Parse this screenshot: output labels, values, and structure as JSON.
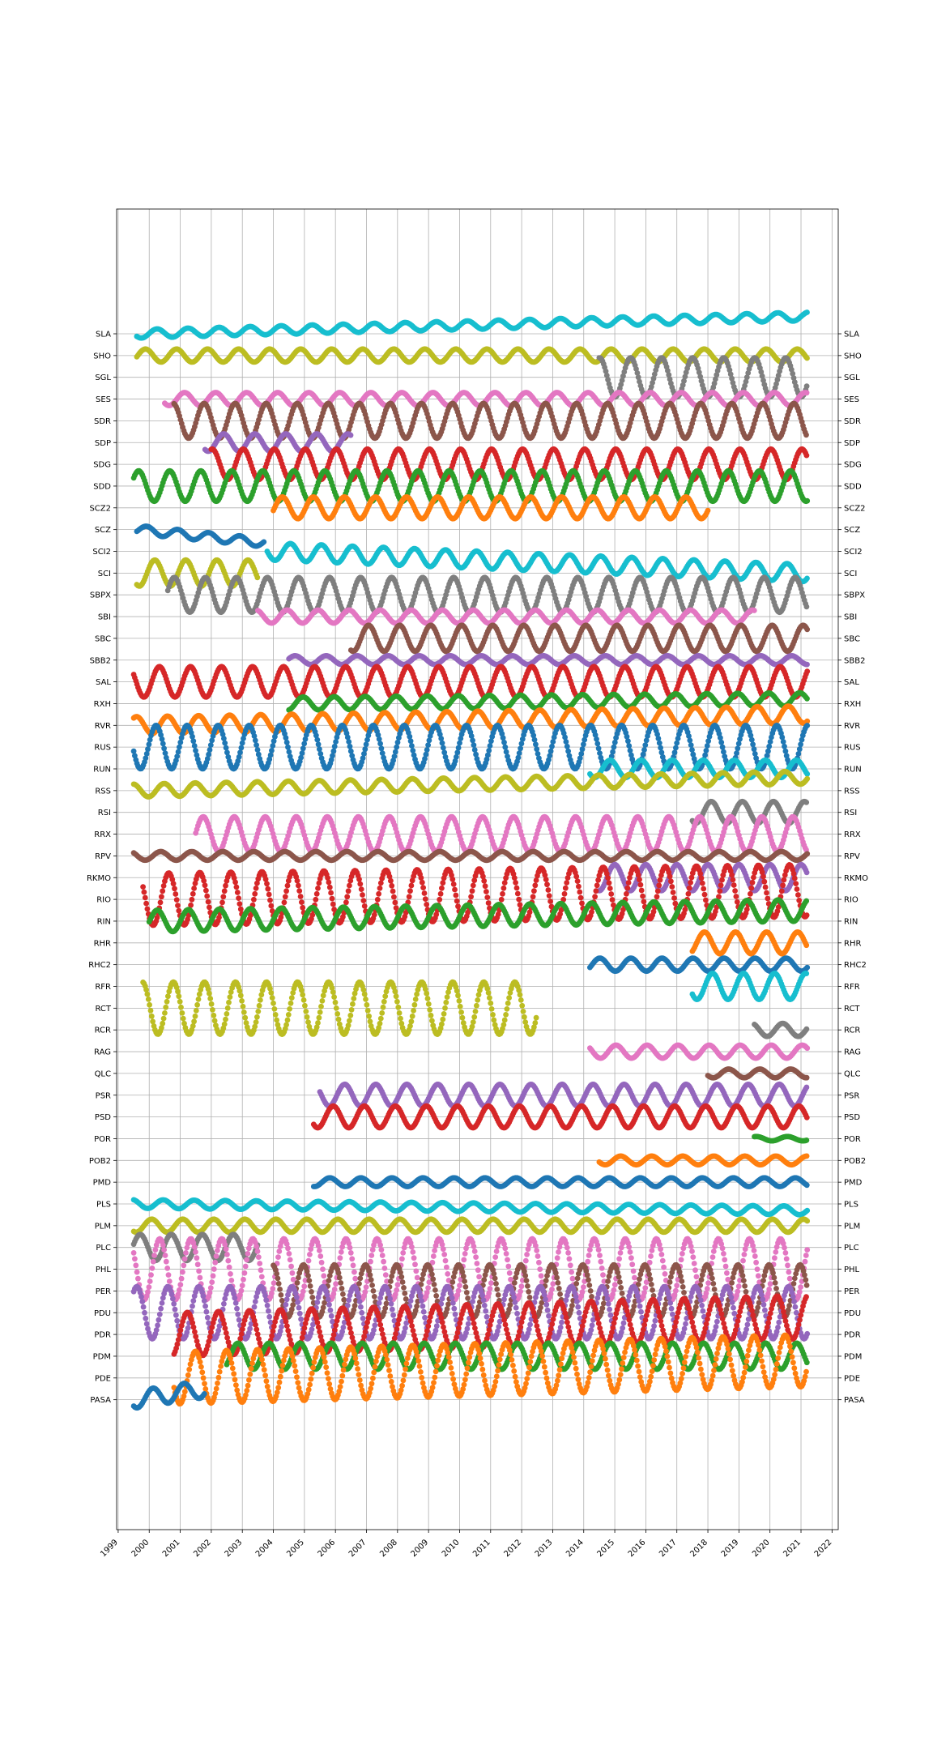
{
  "chart_data": {
    "type": "scatter",
    "title": "",
    "xlabel": "",
    "ylabel": "",
    "x_ticks": [
      "1999",
      "2000",
      "2001",
      "2002",
      "2003",
      "2004",
      "2005",
      "2006",
      "2007",
      "2008",
      "2009",
      "2010",
      "2011",
      "2012",
      "2013",
      "2014",
      "2015",
      "2016",
      "2017",
      "2018",
      "2019",
      "2020",
      "2021",
      "2022"
    ],
    "xlim": [
      1998.95,
      2022.2
    ],
    "grid": true,
    "y_labels_both_sides": true,
    "stations": [
      "SLA",
      "SHO",
      "SGL",
      "SES",
      "SDR",
      "SDP",
      "SDG",
      "SDD",
      "SCZ2",
      "SCZ",
      "SCI2",
      "SCI",
      "SBPX",
      "SBI",
      "SBC",
      "SBB2",
      "SAL",
      "RXH",
      "RVR",
      "RUS",
      "RUN",
      "RSS",
      "RSI",
      "RRX",
      "RPV",
      "RKMO",
      "RIO",
      "RIN",
      "RHR",
      "RHC2",
      "RFR",
      "RCT",
      "RCR",
      "RAG",
      "QLC",
      "PSR",
      "PSD",
      "POR",
      "POB2",
      "PMD",
      "PLS",
      "PLM",
      "PLC",
      "PHL",
      "PER",
      "PDU",
      "PDR",
      "PDM",
      "PDE",
      "PASA"
    ],
    "palette": [
      "#1f77b4",
      "#ff7f0e",
      "#2ca02c",
      "#d62728",
      "#9467bd",
      "#8c564b",
      "#e377c2",
      "#7f7f7f",
      "#bcbd22",
      "#17becf"
    ],
    "series": [
      {
        "name": "SLA",
        "color": "#17becf",
        "start": 1999.6,
        "end": 2021.2,
        "offset": 0,
        "trend": 0.8,
        "amp": 0.2,
        "period": 1
      },
      {
        "name": "SHO",
        "color": "#bcbd22",
        "start": 1999.6,
        "end": 2021.2,
        "offset": 0,
        "trend": 0,
        "amp": 0.3,
        "period": 1
      },
      {
        "name": "SGL",
        "color": "#7f7f7f",
        "start": 2014.5,
        "end": 2021.2,
        "offset": 0,
        "trend": 0,
        "amp": 0.9,
        "period": 1
      },
      {
        "name": "SES",
        "color": "#e377c2",
        "start": 2000.5,
        "end": 2021.2,
        "offset": 0,
        "trend": 0,
        "amp": 0.3,
        "period": 1
      },
      {
        "name": "SDR",
        "color": "#8c564b",
        "start": 2000.8,
        "end": 2021.2,
        "offset": 0,
        "trend": 0,
        "amp": 0.8,
        "period": 1
      },
      {
        "name": "SDP",
        "color": "#9467bd",
        "start": 2001.8,
        "end": 2006.5,
        "offset": 0,
        "trend": 0,
        "amp": 0.4,
        "period": 1
      },
      {
        "name": "SDG",
        "color": "#d62728",
        "start": 2002,
        "end": 2021.2,
        "offset": 0,
        "trend": 0,
        "amp": 0.7,
        "period": 1
      },
      {
        "name": "SDD",
        "color": "#2ca02c",
        "start": 1999.5,
        "end": 2021.2,
        "offset": 0,
        "trend": 0,
        "amp": 0.7,
        "period": 1
      },
      {
        "name": "SCZ2",
        "color": "#ff7f0e",
        "start": 2004,
        "end": 2018,
        "offset": 0,
        "trend": 0,
        "amp": 0.5,
        "period": 1
      },
      {
        "name": "SCZ",
        "color": "#1f77b4",
        "start": 1999.6,
        "end": 2003.7,
        "offset": 0,
        "trend": -0.6,
        "amp": 0.2,
        "period": 1
      },
      {
        "name": "SCI2",
        "color": "#17becf",
        "start": 2003.8,
        "end": 2021.2,
        "offset": 0,
        "trend": -1,
        "amp": 0.4,
        "period": 1
      },
      {
        "name": "SCI",
        "color": "#bcbd22",
        "start": 1999.6,
        "end": 2003.5,
        "offset": 0,
        "trend": 0,
        "amp": 0.6,
        "period": 1
      },
      {
        "name": "SBPX",
        "color": "#7f7f7f",
        "start": 2000.6,
        "end": 2021.2,
        "offset": 0,
        "trend": 0,
        "amp": 0.8,
        "period": 1
      },
      {
        "name": "SBI",
        "color": "#e377c2",
        "start": 2003.5,
        "end": 2019.5,
        "offset": 0,
        "trend": 0,
        "amp": 0.3,
        "period": 1
      },
      {
        "name": "SBC",
        "color": "#8c564b",
        "start": 2006.5,
        "end": 2021.2,
        "offset": 0,
        "trend": 0,
        "amp": 0.6,
        "period": 1
      },
      {
        "name": "SBB2",
        "color": "#9467bd",
        "start": 2004.5,
        "end": 2021.2,
        "offset": 0,
        "trend": 0,
        "amp": 0.2,
        "period": 1
      },
      {
        "name": "SAL",
        "color": "#d62728",
        "start": 1999.5,
        "end": 2021.2,
        "offset": 0,
        "trend": 0,
        "amp": 0.7,
        "period": 1
      },
      {
        "name": "RXH",
        "color": "#2ca02c",
        "start": 2004.5,
        "end": 2021.2,
        "offset": 0,
        "trend": 0.2,
        "amp": 0.3,
        "period": 1
      },
      {
        "name": "RVR",
        "color": "#ff7f0e",
        "start": 1999.5,
        "end": 2021.2,
        "offset": 0,
        "trend": 0.5,
        "amp": 0.4,
        "period": 1
      },
      {
        "name": "RUS",
        "color": "#1f77b4",
        "start": 1999.5,
        "end": 2021.2,
        "offset": 0,
        "trend": 0,
        "amp": 1.0,
        "period": 1
      },
      {
        "name": "RUN",
        "color": "#17becf",
        "start": 2014.2,
        "end": 2021.2,
        "offset": 0,
        "trend": 0,
        "amp": 0.4,
        "period": 1
      },
      {
        "name": "RSS",
        "color": "#bcbd22",
        "start": 1999.5,
        "end": 2021.2,
        "offset": 0,
        "trend": 0.6,
        "amp": 0.3,
        "period": 1
      },
      {
        "name": "RSI",
        "color": "#7f7f7f",
        "start": 2017.5,
        "end": 2021.2,
        "offset": 0,
        "trend": 0,
        "amp": 0.5,
        "period": 1
      },
      {
        "name": "RRX",
        "color": "#e377c2",
        "start": 2001.5,
        "end": 2021.2,
        "offset": 0,
        "trend": 0,
        "amp": 0.8,
        "period": 1
      },
      {
        "name": "RPV",
        "color": "#8c564b",
        "start": 1999.5,
        "end": 2021.2,
        "offset": 0,
        "trend": 0,
        "amp": 0.2,
        "period": 1
      },
      {
        "name": "RKMO",
        "color": "#9467bd",
        "start": 2014.5,
        "end": 2021.2,
        "offset": 0,
        "trend": 0,
        "amp": 0.6,
        "period": 1
      },
      {
        "name": "RIO",
        "color": "#d62728",
        "start": 1999.8,
        "end": 2021.2,
        "offset": 0,
        "trend": 0.4,
        "amp": 1.2,
        "period": 1
      },
      {
        "name": "RIN",
        "color": "#2ca02c",
        "start": 2000,
        "end": 2021.2,
        "offset": 0,
        "trend": 0.5,
        "amp": 0.5,
        "period": 1
      },
      {
        "name": "RHR",
        "color": "#ff7f0e",
        "start": 2017.5,
        "end": 2021.2,
        "offset": 0,
        "trend": 0,
        "amp": 0.5,
        "period": 1
      },
      {
        "name": "RHC2",
        "color": "#1f77b4",
        "start": 2014.2,
        "end": 2021.2,
        "offset": 0,
        "trend": 0,
        "amp": 0.3,
        "period": 1
      },
      {
        "name": "RFR",
        "color": "#17becf",
        "start": 2017.5,
        "end": 2021.2,
        "offset": 0,
        "trend": 0,
        "amp": 0.6,
        "period": 1
      },
      {
        "name": "RCT",
        "color": "#bcbd22",
        "start": 1999.8,
        "end": 2012.5,
        "offset": 0,
        "trend": 0,
        "amp": 1.2,
        "period": 1
      },
      {
        "name": "RCR",
        "color": "#7f7f7f",
        "start": 2019.5,
        "end": 2021.2,
        "offset": 0,
        "trend": 0,
        "amp": 0.3,
        "period": 1
      },
      {
        "name": "RAG",
        "color": "#e377c2",
        "start": 2014.2,
        "end": 2021.2,
        "offset": 0,
        "trend": 0,
        "amp": 0.3,
        "period": 1
      },
      {
        "name": "QLC",
        "color": "#8c564b",
        "start": 2018,
        "end": 2021.2,
        "offset": 0,
        "trend": 0,
        "amp": 0.2,
        "period": 1
      },
      {
        "name": "PSR",
        "color": "#9467bd",
        "start": 2005.5,
        "end": 2021.2,
        "offset": 0,
        "trend": 0,
        "amp": 0.5,
        "period": 1
      },
      {
        "name": "PSD",
        "color": "#d62728",
        "start": 2005.3,
        "end": 2021.2,
        "offset": 0,
        "trend": 0,
        "amp": 0.5,
        "period": 1
      },
      {
        "name": "POR",
        "color": "#2ca02c",
        "start": 2019.5,
        "end": 2021.2,
        "offset": 0,
        "trend": 0,
        "amp": 0.1,
        "period": 1
      },
      {
        "name": "POB2",
        "color": "#ff7f0e",
        "start": 2014.5,
        "end": 2021.2,
        "offset": 0,
        "trend": 0,
        "amp": 0.2,
        "period": 1
      },
      {
        "name": "PMD",
        "color": "#1f77b4",
        "start": 2005.3,
        "end": 2021.2,
        "offset": 0,
        "trend": 0,
        "amp": 0.2,
        "period": 1
      },
      {
        "name": "PLS",
        "color": "#17becf",
        "start": 1999.5,
        "end": 2021.2,
        "offset": 0,
        "trend": -0.3,
        "amp": 0.2,
        "period": 1
      },
      {
        "name": "PLM",
        "color": "#bcbd22",
        "start": 1999.5,
        "end": 2021.2,
        "offset": 0,
        "trend": 0,
        "amp": 0.3,
        "period": 1
      },
      {
        "name": "PLC",
        "color": "#7f7f7f",
        "start": 1999.5,
        "end": 2003.5,
        "offset": 0,
        "trend": 0,
        "amp": 0.6,
        "period": 1
      },
      {
        "name": "PHL",
        "color": "#e377c2",
        "start": 1999.5,
        "end": 2021.2,
        "offset": 0,
        "trend": 0,
        "amp": 1.4,
        "period": 1
      },
      {
        "name": "PER",
        "color": "#8c564b",
        "start": 2004,
        "end": 2021.2,
        "offset": 0,
        "trend": 0,
        "amp": 1.2,
        "period": 1
      },
      {
        "name": "PDU",
        "color": "#9467bd",
        "start": 1999.5,
        "end": 2021.2,
        "offset": 0,
        "trend": 0,
        "amp": 1.2,
        "period": 1
      },
      {
        "name": "PDR",
        "color": "#d62728",
        "start": 2000.8,
        "end": 2021.2,
        "offset": 0,
        "trend": 0.8,
        "amp": 1.0,
        "period": 1
      },
      {
        "name": "PDM",
        "color": "#2ca02c",
        "start": 2002.5,
        "end": 2021.2,
        "offset": 0,
        "trend": 0,
        "amp": 0.6,
        "period": 1
      },
      {
        "name": "PDE",
        "color": "#ff7f0e",
        "start": 2000.8,
        "end": 2021.2,
        "offset": 0,
        "trend": 0.8,
        "amp": 1.2,
        "period": 1
      },
      {
        "name": "PASA",
        "color": "#1f77b4",
        "start": 1999.5,
        "end": 2001.8,
        "offset": 0,
        "trend": 0.5,
        "amp": 0.4,
        "period": 1
      }
    ]
  }
}
